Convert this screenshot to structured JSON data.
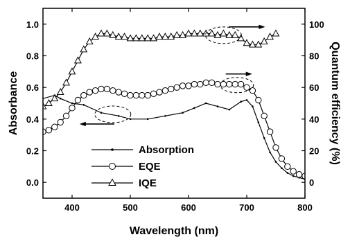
{
  "chart_data": {
    "type": "line",
    "title": "",
    "xlabel": "Wavelength (nm)",
    "ylabel_left": "Absorbance",
    "ylabel_right": "Quantum efficiency (%)",
    "xlim": [
      350,
      800
    ],
    "ylim_left": [
      -0.1,
      1.1
    ],
    "ylim_right": [
      -10,
      110
    ],
    "x_ticks": [
      400,
      500,
      600,
      700,
      800
    ],
    "y_left_ticks": [
      "0.0",
      "0.2",
      "0.4",
      "0.6",
      "0.8",
      "1.0"
    ],
    "y_right_ticks": [
      "0",
      "20",
      "40",
      "60",
      "80",
      "100"
    ],
    "legend_position": "bottom-left",
    "grid": false,
    "series": [
      {
        "name": "Absorption",
        "axis": "left",
        "marker": "small-dot",
        "x": [
          350,
          370,
          380,
          400,
          420,
          450,
          480,
          500,
          530,
          560,
          590,
          610,
          630,
          650,
          670,
          690,
          700,
          710,
          720,
          730,
          740,
          750,
          760,
          770,
          780,
          790,
          800
        ],
        "y": [
          0.53,
          0.55,
          0.53,
          0.5,
          0.49,
          0.44,
          0.42,
          0.4,
          0.4,
          0.42,
          0.44,
          0.47,
          0.5,
          0.48,
          0.46,
          0.51,
          0.52,
          0.48,
          0.38,
          0.28,
          0.19,
          0.13,
          0.09,
          0.06,
          0.04,
          0.03,
          0.02
        ]
      },
      {
        "name": "EQE",
        "axis": "right",
        "marker": "circle",
        "x": [
          350,
          360,
          370,
          380,
          390,
          400,
          410,
          420,
          430,
          440,
          450,
          460,
          470,
          480,
          490,
          500,
          510,
          520,
          530,
          540,
          550,
          560,
          570,
          580,
          590,
          600,
          610,
          620,
          630,
          640,
          650,
          660,
          670,
          680,
          690,
          700,
          710,
          720,
          730,
          740,
          750,
          760,
          770,
          780,
          790,
          800
        ],
        "y": [
          32,
          33,
          35,
          38,
          42,
          47,
          52,
          55,
          57,
          58,
          59,
          59,
          58,
          57,
          56,
          55,
          55,
          55,
          55,
          56,
          57,
          58,
          59,
          60,
          61,
          61,
          62,
          62,
          63,
          63,
          62,
          62,
          62,
          62,
          62,
          60,
          58,
          52,
          42,
          32,
          22,
          15,
          10,
          7,
          5,
          4
        ]
      },
      {
        "name": "IQE",
        "axis": "right",
        "marker": "triangle",
        "x": [
          350,
          360,
          370,
          380,
          390,
          400,
          410,
          420,
          430,
          440,
          450,
          460,
          470,
          480,
          490,
          500,
          510,
          520,
          530,
          540,
          550,
          560,
          570,
          580,
          590,
          600,
          610,
          620,
          630,
          640,
          650,
          660,
          670,
          680,
          690,
          700,
          710,
          720,
          730,
          740,
          750
        ],
        "y": [
          48,
          50,
          53,
          57,
          63,
          70,
          77,
          84,
          89,
          92,
          94,
          94,
          93,
          92,
          92,
          91,
          91,
          91,
          91,
          91,
          92,
          92,
          92,
          93,
          93,
          94,
          94,
          94,
          94,
          94,
          93,
          94,
          93,
          93,
          91,
          88,
          87,
          87,
          89,
          92,
          94
        ]
      }
    ],
    "annotations": [
      {
        "type": "ellipse",
        "target": "Absorption",
        "cx": 470,
        "cy": 0.43
      },
      {
        "type": "arrow",
        "target": "Absorption",
        "direction": "left"
      },
      {
        "type": "ellipse",
        "target": "EQE",
        "cx": 683,
        "cy": 0.615
      },
      {
        "type": "arrow",
        "target": "EQE",
        "direction": "right"
      },
      {
        "type": "ellipse",
        "target": "IQE",
        "cx": 660,
        "cy": 0.93
      },
      {
        "type": "arrow",
        "target": "IQE",
        "direction": "right"
      }
    ]
  }
}
